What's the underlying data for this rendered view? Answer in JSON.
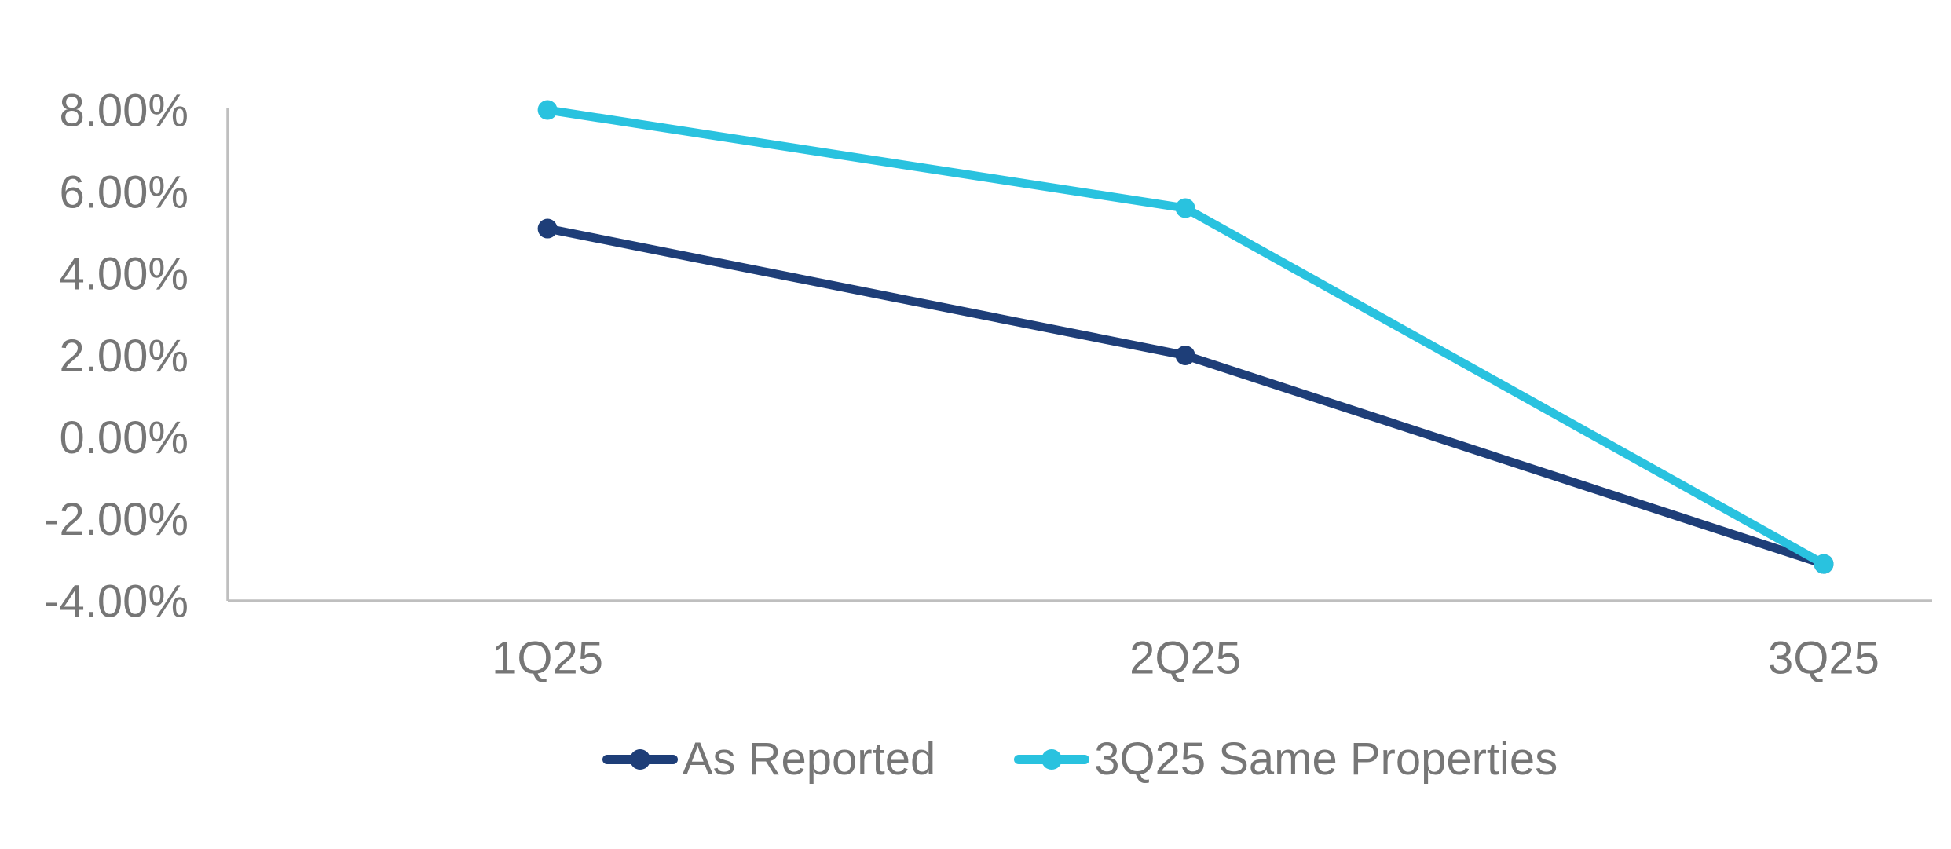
{
  "chart_data": {
    "type": "line",
    "categories": [
      "1Q25",
      "2Q25",
      "3Q25"
    ],
    "series": [
      {
        "name": "As Reported",
        "color": "#1E3E78",
        "values": [
          5.1,
          2.0,
          -3.1
        ]
      },
      {
        "name": "3Q25 Same Properties",
        "color": "#29C2DF",
        "values": [
          8.0,
          5.6,
          -3.1
        ]
      }
    ],
    "y_axis": {
      "min": -4,
      "max": 8,
      "step": 2,
      "tick_labels": [
        "8.00%",
        "6.00%",
        "4.00%",
        "2.00%",
        "0.00%",
        "-2.00%",
        "-4.00%"
      ]
    },
    "x_axis": {
      "tick_labels": [
        "1Q25",
        "2Q25",
        "3Q25"
      ]
    },
    "title": "",
    "xlabel": "",
    "ylabel": "",
    "grid": false,
    "legend_position": "bottom",
    "line_style": "straight",
    "markers": "circle",
    "colors": {
      "axis_line": "#BFBFBF",
      "tick_text": "#767676",
      "background": "#FFFFFF"
    }
  }
}
